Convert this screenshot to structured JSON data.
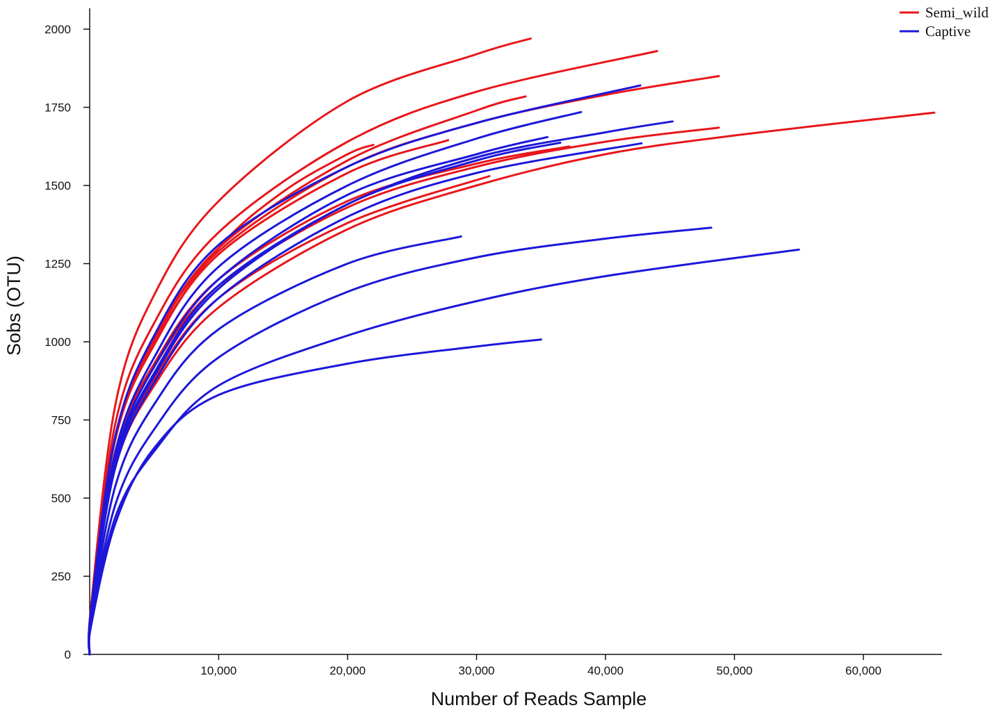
{
  "chart_data": {
    "type": "line",
    "title": "",
    "xlabel": "Number of Reads Sample",
    "ylabel": "Sobs (OTU)",
    "xlim": [
      0,
      66000
    ],
    "ylim": [
      0,
      2100
    ],
    "x_ticks": [
      10000,
      20000,
      30000,
      40000,
      50000,
      60000
    ],
    "x_tick_labels": [
      "10,000",
      "20,000",
      "30,000",
      "40,000",
      "50,000",
      "60,000"
    ],
    "y_ticks": [
      0,
      250,
      500,
      750,
      1000,
      1250,
      1500,
      1750,
      2000
    ],
    "y_tick_labels": [
      "0",
      "250",
      "500",
      "750",
      "1000",
      "1250",
      "1500",
      "1750",
      "2000"
    ],
    "grid": false,
    "legend": {
      "position": "top-right",
      "entries": [
        {
          "label": "Semi_wild",
          "color": "#e8161b"
        },
        {
          "label": "Captive",
          "color": "#1c17d9"
        }
      ]
    },
    "series": [
      {
        "group": "Semi_wild",
        "color": "#e8161b",
        "x": [
          100,
          2000,
          5000,
          10000,
          20000,
          30000,
          34200
        ],
        "y": [
          150,
          800,
          1150,
          1450,
          1770,
          1920,
          1970
        ]
      },
      {
        "group": "Semi_wild",
        "color": "#e8161b",
        "x": [
          100,
          2000,
          5000,
          10000,
          20000,
          30000,
          44000
        ],
        "y": [
          150,
          740,
          1060,
          1350,
          1640,
          1800,
          1930
        ]
      },
      {
        "group": "Semi_wild",
        "color": "#e8161b",
        "x": [
          100,
          2000,
          5000,
          10000,
          20000,
          30000,
          40000,
          48800
        ],
        "y": [
          140,
          700,
          1010,
          1290,
          1560,
          1700,
          1790,
          1850
        ]
      },
      {
        "group": "Semi_wild",
        "color": "#e8161b",
        "x": [
          100,
          2000,
          5000,
          10000,
          20000,
          30000,
          33800
        ],
        "y": [
          140,
          700,
          1010,
          1300,
          1580,
          1740,
          1785
        ]
      },
      {
        "group": "Semi_wild",
        "color": "#e8161b",
        "x": [
          100,
          2000,
          5000,
          10000,
          15000,
          20000,
          22000
        ],
        "y": [
          140,
          690,
          1000,
          1300,
          1480,
          1600,
          1630
        ]
      },
      {
        "group": "Semi_wild",
        "color": "#e8161b",
        "x": [
          100,
          2000,
          5000,
          10000,
          20000,
          27800
        ],
        "y": [
          140,
          690,
          990,
          1280,
          1540,
          1645
        ]
      },
      {
        "group": "Semi_wild",
        "color": "#e8161b",
        "x": [
          100,
          2000,
          5000,
          10000,
          20000,
          30000,
          40000,
          48800
        ],
        "y": [
          130,
          640,
          920,
          1180,
          1430,
          1560,
          1640,
          1685
        ]
      },
      {
        "group": "Semi_wild",
        "color": "#e8161b",
        "x": [
          100,
          2000,
          5000,
          10000,
          20000,
          30000,
          37200
        ],
        "y": [
          130,
          650,
          930,
          1200,
          1450,
          1570,
          1625
        ]
      },
      {
        "group": "Semi_wild",
        "color": "#e8161b",
        "x": [
          100,
          2000,
          5000,
          10000,
          20000,
          31000
        ],
        "y": [
          130,
          610,
          880,
          1140,
          1380,
          1530
        ]
      },
      {
        "group": "Semi_wild",
        "color": "#e8161b",
        "x": [
          100,
          2000,
          5000,
          10000,
          20000,
          30000,
          40000,
          50000,
          65500
        ],
        "y": [
          125,
          600,
          860,
          1110,
          1360,
          1500,
          1600,
          1660,
          1733
        ]
      },
      {
        "group": "Captive",
        "color": "#1c17d9",
        "x": [
          100,
          2000,
          5000,
          10000,
          20000,
          30000,
          42700
        ],
        "y": [
          140,
          700,
          1020,
          1310,
          1560,
          1700,
          1820
        ]
      },
      {
        "group": "Captive",
        "color": "#1c17d9",
        "x": [
          100,
          2000,
          5000,
          10000,
          20000,
          30000,
          38100
        ],
        "y": [
          130,
          650,
          950,
          1240,
          1500,
          1650,
          1735
        ]
      },
      {
        "group": "Captive",
        "color": "#1c17d9",
        "x": [
          100,
          2000,
          5000,
          10000,
          20000,
          30000,
          40000,
          45200
        ],
        "y": [
          125,
          620,
          900,
          1180,
          1440,
          1590,
          1670,
          1705
        ]
      },
      {
        "group": "Captive",
        "color": "#1c17d9",
        "x": [
          100,
          2000,
          5000,
          10000,
          20000,
          30000,
          35500
        ],
        "y": [
          130,
          630,
          920,
          1200,
          1470,
          1600,
          1655
        ]
      },
      {
        "group": "Captive",
        "color": "#1c17d9",
        "x": [
          100,
          2000,
          5000,
          10000,
          20000,
          30000,
          36500
        ],
        "y": [
          125,
          615,
          890,
          1170,
          1440,
          1580,
          1637
        ]
      },
      {
        "group": "Captive",
        "color": "#1c17d9",
        "x": [
          100,
          2000,
          5000,
          10000,
          20000,
          30000,
          42800
        ],
        "y": [
          120,
          600,
          870,
          1140,
          1400,
          1540,
          1635
        ]
      },
      {
        "group": "Captive",
        "color": "#1c17d9",
        "x": [
          100,
          2000,
          5000,
          10000,
          20000,
          28800
        ],
        "y": [
          110,
          540,
          800,
          1040,
          1250,
          1337
        ]
      },
      {
        "group": "Captive",
        "color": "#1c17d9",
        "x": [
          100,
          2000,
          5000,
          10000,
          20000,
          30000,
          40000,
          48200
        ],
        "y": [
          105,
          480,
          720,
          950,
          1160,
          1270,
          1330,
          1365
        ]
      },
      {
        "group": "Captive",
        "color": "#1c17d9",
        "x": [
          100,
          2000,
          5000,
          10000,
          20000,
          30000,
          40000,
          55000
        ],
        "y": [
          95,
          440,
          650,
          860,
          1020,
          1130,
          1210,
          1295
        ]
      },
      {
        "group": "Captive",
        "color": "#1c17d9",
        "x": [
          100,
          2000,
          5000,
          10000,
          20000,
          30000,
          35000
        ],
        "y": [
          90,
          420,
          660,
          830,
          930,
          985,
          1007
        ]
      }
    ]
  }
}
